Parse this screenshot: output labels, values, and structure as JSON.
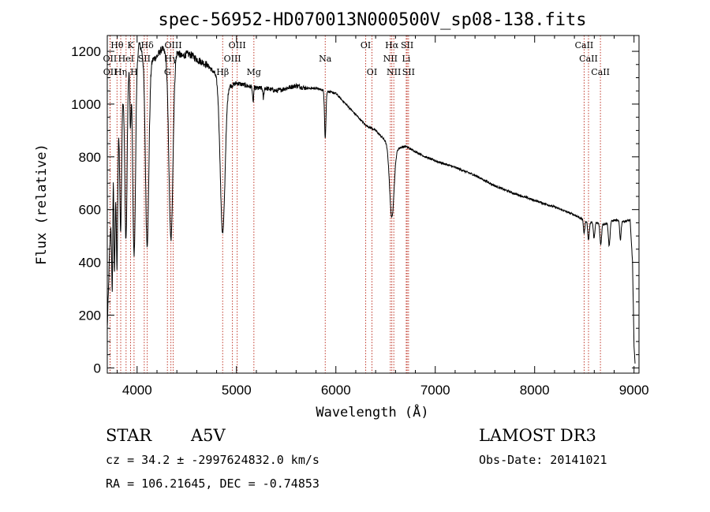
{
  "chart_data": {
    "type": "line",
    "title": "spec-56952-HD070013N000500V_sp08-138.fits",
    "xlabel": "Wavelength (Å)",
    "ylabel": "Flux (relative)",
    "xlim": [
      3700,
      9050
    ],
    "ylim": [
      -20,
      1260
    ],
    "xticks": [
      4000,
      5000,
      6000,
      7000,
      8000,
      9000
    ],
    "yticks": [
      0,
      200,
      400,
      600,
      800,
      1000,
      1200
    ],
    "spectrum_anchors": [
      [
        3700,
        150
      ],
      [
        3720,
        400
      ],
      [
        3740,
        600
      ],
      [
        3760,
        900
      ],
      [
        3780,
        700
      ],
      [
        3800,
        880
      ],
      [
        3820,
        950
      ],
      [
        3850,
        1050
      ],
      [
        3880,
        1000
      ],
      [
        3900,
        1120
      ],
      [
        3940,
        1180
      ],
      [
        3960,
        1160
      ],
      [
        4000,
        1190
      ],
      [
        4020,
        1230
      ],
      [
        4050,
        1200
      ],
      [
        4080,
        1180
      ],
      [
        4120,
        1160
      ],
      [
        4200,
        1180
      ],
      [
        4250,
        1210
      ],
      [
        4300,
        1190
      ],
      [
        4350,
        1160
      ],
      [
        4400,
        1200
      ],
      [
        4450,
        1180
      ],
      [
        4500,
        1190
      ],
      [
        4550,
        1185
      ],
      [
        4600,
        1170
      ],
      [
        4650,
        1160
      ],
      [
        4700,
        1150
      ],
      [
        4750,
        1130
      ],
      [
        4800,
        1110
      ],
      [
        4840,
        1080
      ],
      [
        4900,
        1080
      ],
      [
        4950,
        1070
      ],
      [
        5000,
        1080
      ],
      [
        5100,
        1070
      ],
      [
        5200,
        1060
      ],
      [
        5300,
        1060
      ],
      [
        5400,
        1050
      ],
      [
        5500,
        1060
      ],
      [
        5600,
        1070
      ],
      [
        5700,
        1060
      ],
      [
        5800,
        1060
      ],
      [
        5900,
        1050
      ],
      [
        6000,
        1040
      ],
      [
        6100,
        1000
      ],
      [
        6200,
        960
      ],
      [
        6300,
        920
      ],
      [
        6400,
        900
      ],
      [
        6500,
        860
      ],
      [
        6560,
        830
      ],
      [
        6600,
        830
      ],
      [
        6700,
        840
      ],
      [
        6800,
        820
      ],
      [
        6900,
        800
      ],
      [
        7000,
        785
      ],
      [
        7200,
        760
      ],
      [
        7400,
        730
      ],
      [
        7600,
        690
      ],
      [
        7800,
        660
      ],
      [
        8000,
        635
      ],
      [
        8200,
        610
      ],
      [
        8400,
        580
      ],
      [
        8500,
        560
      ],
      [
        8600,
        550
      ],
      [
        8700,
        545
      ],
      [
        8800,
        560
      ],
      [
        8900,
        555
      ],
      [
        8960,
        560
      ],
      [
        8985,
        400
      ],
      [
        9000,
        80
      ],
      [
        9010,
        20
      ]
    ],
    "absorption_features": [
      {
        "center": 3750,
        "depth": 450,
        "width": 6
      },
      {
        "center": 3771,
        "depth": 420,
        "width": 6
      },
      {
        "center": 3798,
        "depth": 480,
        "width": 7
      },
      {
        "center": 3835,
        "depth": 480,
        "width": 9
      },
      {
        "center": 3889,
        "depth": 560,
        "width": 11
      },
      {
        "center": 3933,
        "depth": 250,
        "width": 6
      },
      {
        "center": 3970,
        "depth": 740,
        "width": 14
      },
      {
        "center": 4101,
        "depth": 700,
        "width": 17
      },
      {
        "center": 4340,
        "depth": 680,
        "width": 20
      },
      {
        "center": 4861,
        "depth": 570,
        "width": 24
      },
      {
        "center": 5167,
        "depth": 60,
        "width": 5
      },
      {
        "center": 5270,
        "depth": 40,
        "width": 5
      },
      {
        "center": 5893,
        "depth": 180,
        "width": 7
      },
      {
        "center": 6563,
        "depth": 260,
        "width": 22
      },
      {
        "center": 8498,
        "depth": 50,
        "width": 7
      },
      {
        "center": 8542,
        "depth": 70,
        "width": 8
      },
      {
        "center": 8598,
        "depth": 60,
        "width": 7
      },
      {
        "center": 8665,
        "depth": 80,
        "width": 8
      },
      {
        "center": 8750,
        "depth": 90,
        "width": 8
      },
      {
        "center": 8863,
        "depth": 70,
        "width": 7
      }
    ],
    "line_markers": [
      {
        "label": "Hθ",
        "wave": 3798,
        "row": 1
      },
      {
        "label": "OII",
        "wave": 3727,
        "row": 2
      },
      {
        "label": "OII",
        "wave": 3729,
        "row": 3
      },
      {
        "label": "Hη",
        "wave": 3835,
        "row": 3
      },
      {
        "label": "HeI",
        "wave": 3889,
        "row": 2
      },
      {
        "label": "K",
        "wave": 3934,
        "row": 1
      },
      {
        "label": "H",
        "wave": 3969,
        "row": 3
      },
      {
        "label": "Hδ",
        "wave": 4102,
        "row": 1
      },
      {
        "label": "SII",
        "wave": 4072,
        "row": 2
      },
      {
        "label": "OIII",
        "wave": 4363,
        "row": 1
      },
      {
        "label": "Hγ",
        "wave": 4340,
        "row": 2
      },
      {
        "label": "G",
        "wave": 4305,
        "row": 3
      },
      {
        "label": "OIII",
        "wave": 5007,
        "row": 1
      },
      {
        "label": "OIII",
        "wave": 4959,
        "row": 2
      },
      {
        "label": "Hβ",
        "wave": 4861,
        "row": 3
      },
      {
        "label": "Mg",
        "wave": 5175,
        "row": 3
      },
      {
        "label": "Na",
        "wave": 5893,
        "row": 2
      },
      {
        "label": "OI",
        "wave": 6300,
        "row": 1
      },
      {
        "label": "OI",
        "wave": 6363,
        "row": 3
      },
      {
        "label": "Hα",
        "wave": 6563,
        "row": 1
      },
      {
        "label": "SII",
        "wave": 6717,
        "row": 1
      },
      {
        "label": "NII",
        "wave": 6548,
        "row": 2
      },
      {
        "label": "Li",
        "wave": 6708,
        "row": 2
      },
      {
        "label": "NII",
        "wave": 6583,
        "row": 3
      },
      {
        "label": "SII",
        "wave": 6731,
        "row": 3
      },
      {
        "label": "CaII",
        "wave": 8498,
        "row": 1
      },
      {
        "label": "CaII",
        "wave": 8542,
        "row": 2
      },
      {
        "label": "CaII",
        "wave": 8662,
        "row": 3
      }
    ],
    "marker_color": "#c0392b",
    "line_color": "#000000"
  },
  "info": {
    "object_class": "STAR",
    "subclass": "A5V",
    "survey": "LAMOST DR3",
    "cz": "cz = 34.2 ± -2997624832.0 km/s",
    "obs_date": "Obs-Date: 20141021",
    "coords": "RA = 106.21645, DEC =  -0.74853"
  }
}
